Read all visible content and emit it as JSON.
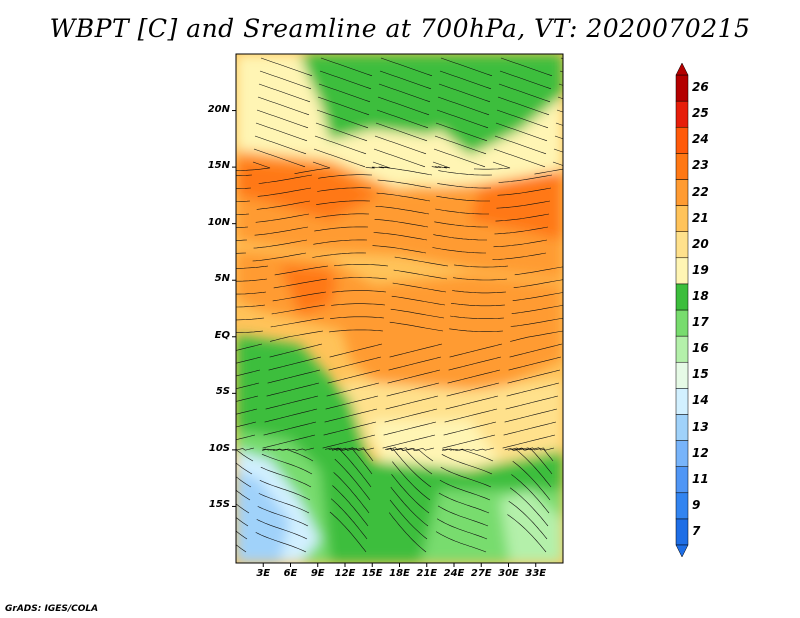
{
  "title": "WBPT [C] and Sreamline at 700hPa, VT: 2020070215",
  "credit": "GrADS: IGES/COLA",
  "map": {
    "lon_range": [
      0,
      36
    ],
    "lat_range": [
      -20,
      25
    ],
    "lat_ticks": [
      {
        "value": 20,
        "label": "20N"
      },
      {
        "value": 15,
        "label": "15N"
      },
      {
        "value": 10,
        "label": "10N"
      },
      {
        "value": 5,
        "label": "5N"
      },
      {
        "value": 0,
        "label": "EQ"
      },
      {
        "value": -5,
        "label": "5S"
      },
      {
        "value": -10,
        "label": "10S"
      },
      {
        "value": -15,
        "label": "15S"
      }
    ],
    "lon_ticks": [
      {
        "value": 3,
        "label": "3E"
      },
      {
        "value": 6,
        "label": "6E"
      },
      {
        "value": 9,
        "label": "9E"
      },
      {
        "value": 12,
        "label": "12E"
      },
      {
        "value": 15,
        "label": "15E"
      },
      {
        "value": 18,
        "label": "18E"
      },
      {
        "value": 21,
        "label": "21E"
      },
      {
        "value": 24,
        "label": "24E"
      },
      {
        "value": 27,
        "label": "27E"
      },
      {
        "value": 30,
        "label": "30E"
      },
      {
        "value": 33,
        "label": "33E"
      }
    ]
  },
  "colorbar": {
    "labels": [
      "7",
      "9",
      "11",
      "12",
      "13",
      "14",
      "15",
      "16",
      "17",
      "18",
      "19",
      "20",
      "21",
      "22",
      "23",
      "24",
      "25",
      "26"
    ],
    "colors": [
      "#1e6ee6",
      "#3284f0",
      "#5096f5",
      "#78b4fa",
      "#a0d2fa",
      "#d2f0ff",
      "#e6fae6",
      "#b4f0aa",
      "#78dc6e",
      "#3cbe3c",
      "#fff5b4",
      "#ffe18c",
      "#ffc35a",
      "#ff9b32",
      "#ff7814",
      "#ff5a0a",
      "#e61e0a",
      "#b40000"
    ]
  }
}
